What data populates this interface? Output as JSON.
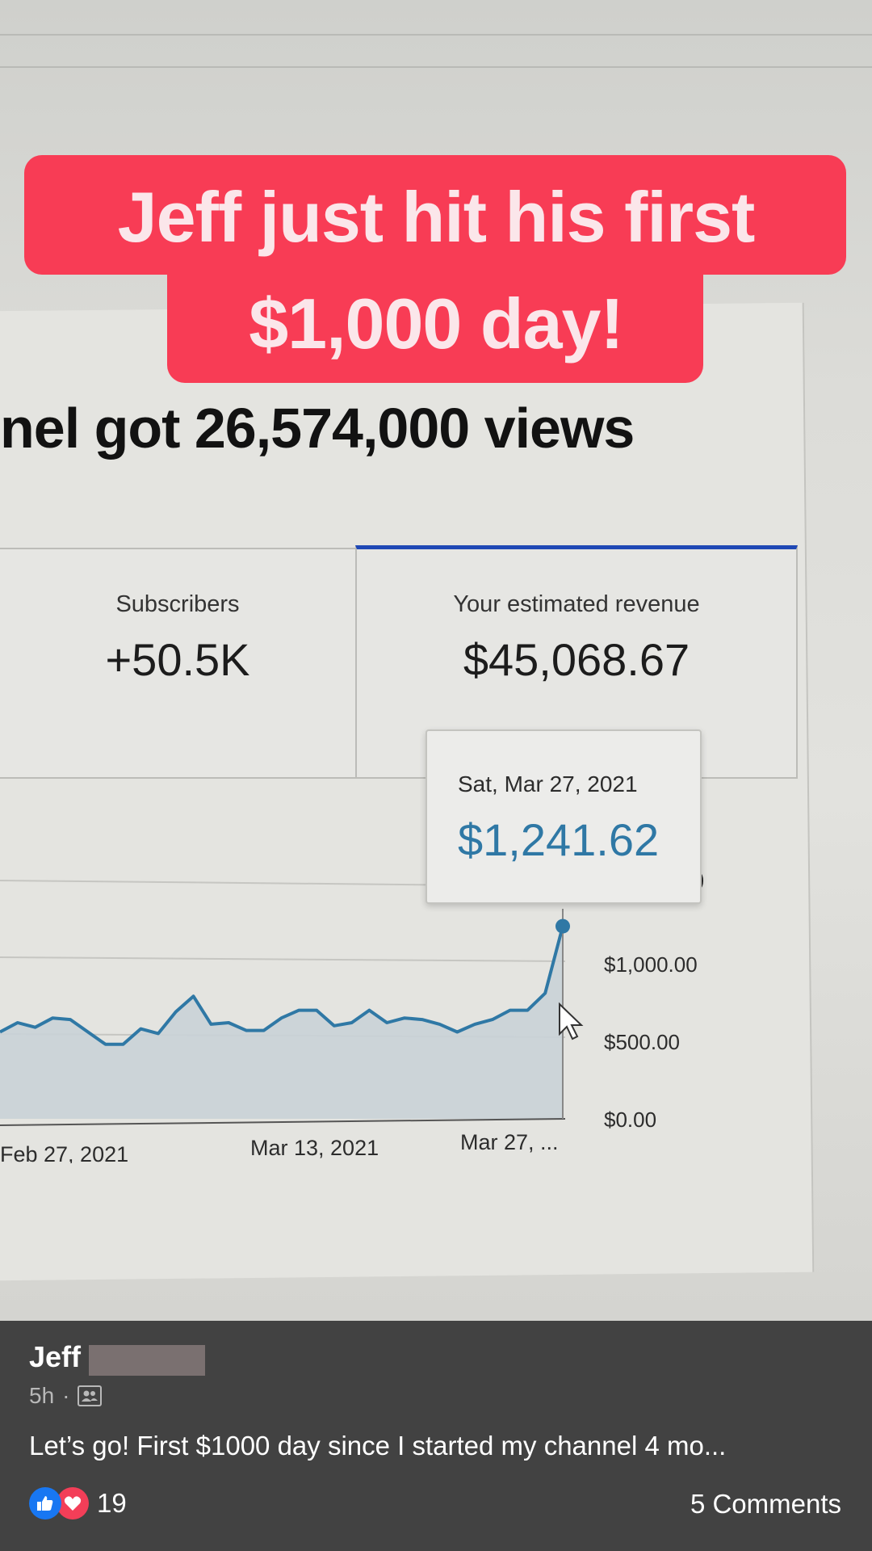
{
  "caption": {
    "line1": "Jeff just hit his first",
    "line2": "$1,000 day!"
  },
  "screen": {
    "headline": "nel got 26,574,000 views",
    "subscribers": {
      "label": "Subscribers",
      "value": "+50.5K"
    },
    "revenue": {
      "label": "Your estimated revenue",
      "value": "$45,068.67"
    },
    "tooltip": {
      "date": "Sat, Mar 27, 2021",
      "value": "$1,241.62"
    },
    "cut_tick": ")"
  },
  "chart_data": {
    "type": "area",
    "x_ticks": [
      "Feb 27, 2021",
      "Mar 13, 2021",
      "Mar 27, ..."
    ],
    "y_ticks": [
      "$0.00",
      "$500.00",
      "$1,000.00"
    ],
    "ylim": [
      0,
      1500
    ],
    "values": [
      560,
      620,
      590,
      650,
      640,
      560,
      480,
      480,
      580,
      550,
      690,
      790,
      610,
      620,
      570,
      570,
      650,
      700,
      700,
      600,
      620,
      700,
      620,
      650,
      640,
      610,
      560,
      610,
      640,
      700,
      700,
      810,
      1241.62
    ],
    "highlight_index": 32,
    "color": "#2f78a5"
  },
  "post": {
    "author": "Jeff",
    "time": "5h",
    "separator": "·",
    "text": "Let’s go! First $1000 day since I started my channel 4 mo...",
    "reaction_count": "19",
    "comments": "5 Comments",
    "colors": {
      "like": "#1877f2",
      "love": "#f33e58"
    }
  }
}
